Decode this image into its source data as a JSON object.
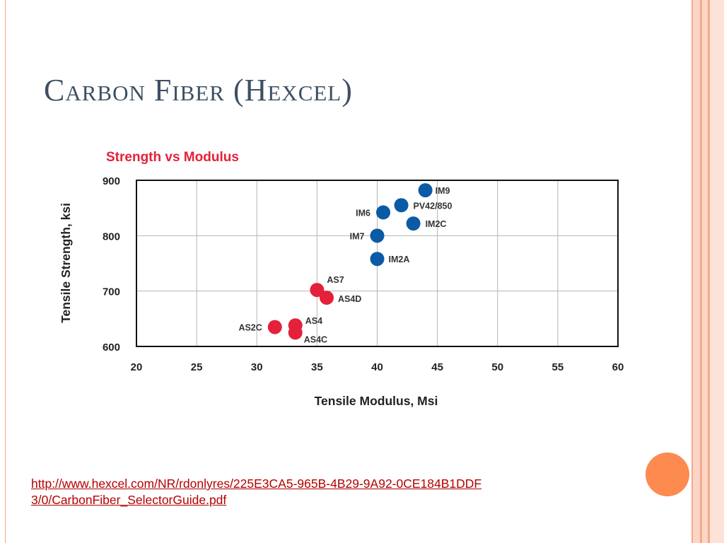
{
  "slide": {
    "title": "Carbon Fiber (Hexcel)",
    "link_text": "http://www.hexcel.com/NR/rdonlyres/225E3CA5-965B-4B29-9A92-0CE184B1DDF3/0/CarbonFiber_SelectorGuide.pdf"
  },
  "colors": {
    "accent": "#fd8a4e",
    "im_series": "#0b5aa6",
    "as_series": "#e4213a"
  },
  "chart_data": {
    "type": "scatter",
    "title": "Strength vs Modulus",
    "xlabel": "Tensile Modulus, Msi",
    "ylabel": "Tensile Strength, ksi",
    "xlim": [
      20,
      60
    ],
    "ylim": [
      600,
      900
    ],
    "xticks": [
      "20",
      "25",
      "30",
      "35",
      "40",
      "45",
      "50",
      "55",
      "60"
    ],
    "yticks": [
      "600",
      "700",
      "800",
      "900"
    ],
    "grid": true,
    "series": [
      {
        "color": "#0b5aa6",
        "points": [
          {
            "label": "IM9",
            "x": 44.0,
            "y": 882
          },
          {
            "label": "PV42/850",
            "x": 42.0,
            "y": 855
          },
          {
            "label": "IM6",
            "x": 40.5,
            "y": 842
          },
          {
            "label": "IM2C",
            "x": 43.0,
            "y": 822
          },
          {
            "label": "IM7",
            "x": 40.0,
            "y": 800
          },
          {
            "label": "IM2A",
            "x": 40.0,
            "y": 758
          }
        ]
      },
      {
        "color": "#e4213a",
        "points": [
          {
            "label": "AS7",
            "x": 35.0,
            "y": 702
          },
          {
            "label": "AS4D",
            "x": 35.8,
            "y": 688
          },
          {
            "label": "AS4",
            "x": 33.2,
            "y": 638
          },
          {
            "label": "AS2C",
            "x": 31.5,
            "y": 635
          },
          {
            "label": "AS4C",
            "x": 33.2,
            "y": 625
          }
        ]
      }
    ]
  }
}
